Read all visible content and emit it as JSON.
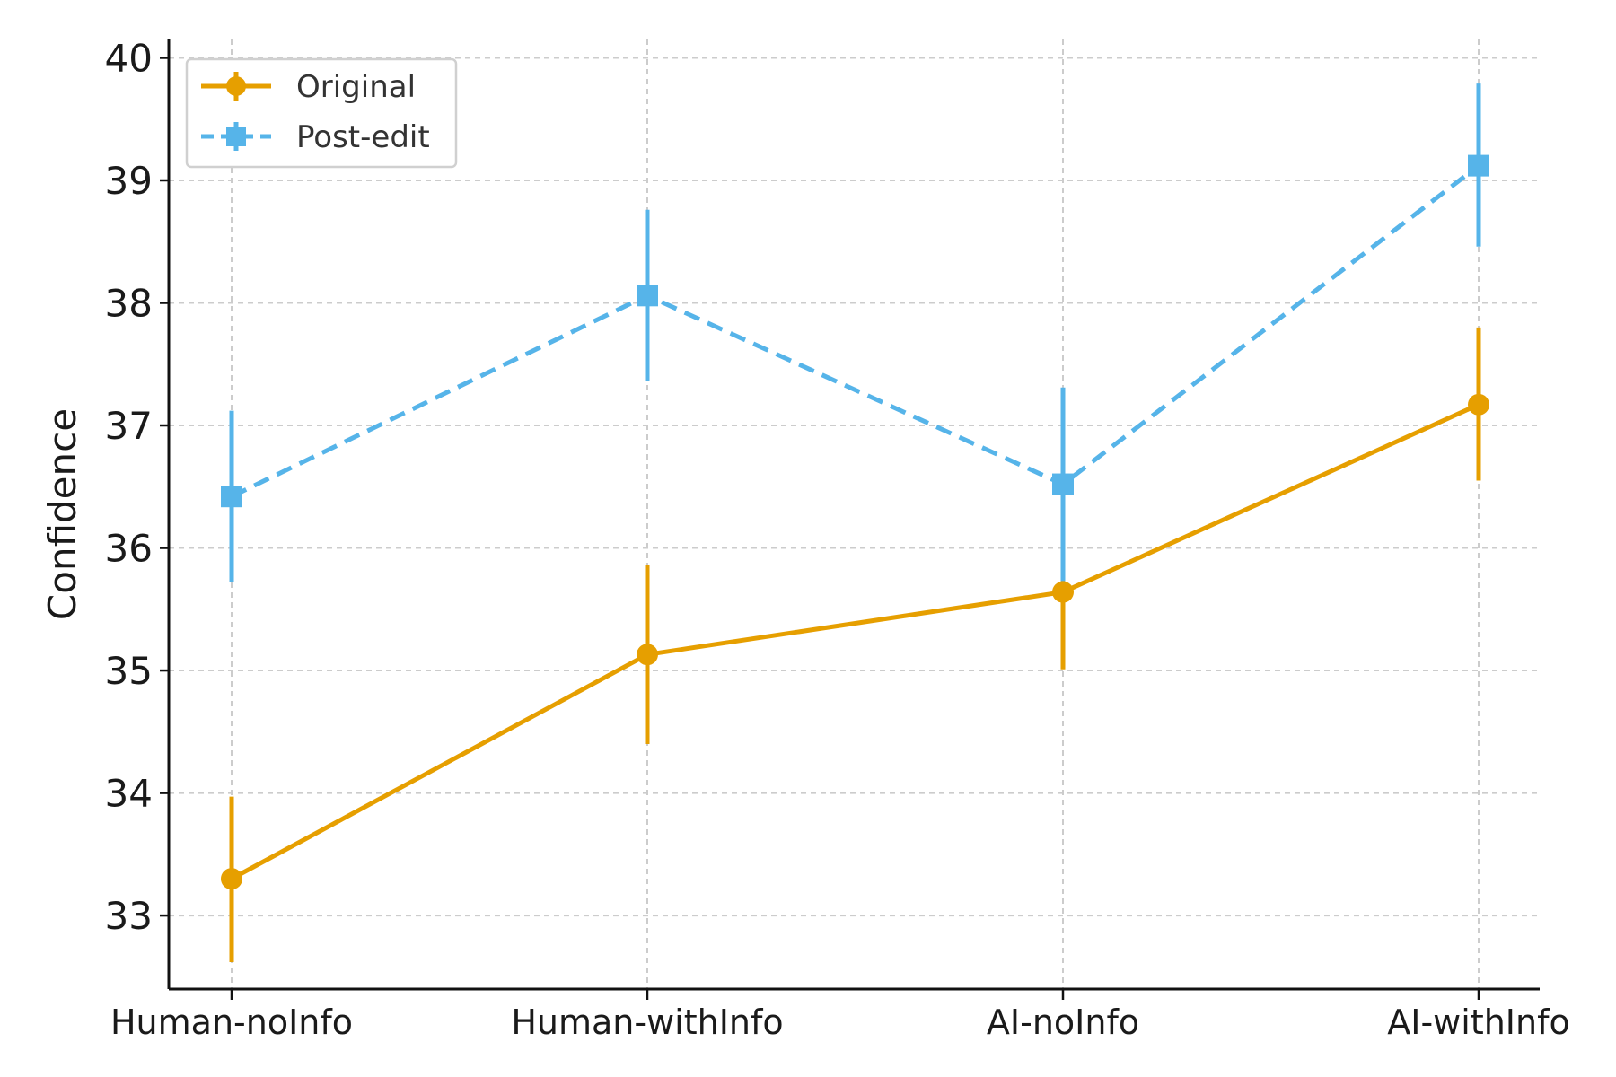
{
  "chart_data": {
    "type": "line",
    "categories": [
      "Human-noInfo",
      "Human-withInfo",
      "AI-noInfo",
      "AI-withInfo"
    ],
    "series": [
      {
        "name": "Original",
        "color": "#E69F00",
        "line_style": "solid",
        "marker": "circle",
        "values": [
          33.3,
          35.13,
          35.64,
          37.17
        ],
        "error_low": [
          32.62,
          34.4,
          35.01,
          36.55
        ],
        "error_high": [
          33.97,
          35.86,
          36.27,
          37.8
        ]
      },
      {
        "name": "Post-edit",
        "color": "#56B4E9",
        "line_style": "dashed",
        "marker": "square",
        "values": [
          36.42,
          38.06,
          36.52,
          39.12
        ],
        "error_low": [
          35.72,
          37.36,
          35.73,
          38.46
        ],
        "error_high": [
          37.12,
          38.76,
          37.31,
          39.79
        ]
      }
    ],
    "xlabel": "",
    "ylabel": "Confidence",
    "ylim": [
      32.4,
      40.15
    ],
    "yticks": [
      "33",
      "34",
      "35",
      "36",
      "37",
      "38",
      "39",
      "40"
    ],
    "grid": true,
    "legend_position": "top-left"
  }
}
